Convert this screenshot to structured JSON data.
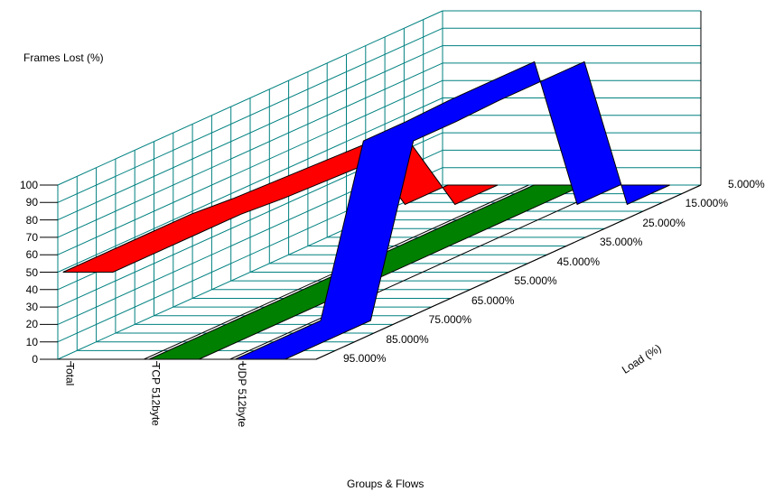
{
  "chart_data": {
    "type": "area",
    "subtype": "3d-ribbon",
    "title": "",
    "ylabel": "Frames Lost (%)",
    "xlabel": "Groups & Flows",
    "zlabel": "Load (%)",
    "ylim": [
      0,
      100
    ],
    "y_ticks": [
      "0",
      "10",
      "20",
      "30",
      "40",
      "50",
      "60",
      "70",
      "80",
      "90",
      "100"
    ],
    "categories": [
      "Total",
      "TCP 512byte",
      "UDP 512byte"
    ],
    "load_ticks": [
      "95.000%",
      "85.000%",
      "75.000%",
      "65.000%",
      "55.000%",
      "45.000%",
      "35.000%",
      "25.000%",
      "15.000%",
      "5.000%"
    ],
    "grid": true,
    "series": [
      {
        "name": "Total",
        "color": "#ff0000",
        "values_by_load": [
          50,
          50,
          50,
          50,
          48,
          47,
          46,
          45,
          0,
          0
        ]
      },
      {
        "name": "TCP 512byte",
        "color": "#008000",
        "values_by_load": [
          0,
          0,
          0,
          0,
          0,
          0,
          0,
          0,
          0,
          0
        ]
      },
      {
        "name": "UDP 512byte",
        "color": "#0000ff",
        "values_by_load": [
          0,
          0,
          0,
          92,
          92,
          93,
          93,
          93,
          0,
          0
        ]
      }
    ]
  },
  "labels": {
    "ylabel": "Frames Lost (%)",
    "xlabel": "Groups & Flows",
    "zlabel": "Load (%)"
  },
  "colors": {
    "grid": "#008080",
    "axis": "#000000",
    "total": "#ff0000",
    "tcp": "#008000",
    "udp": "#0000ff"
  }
}
